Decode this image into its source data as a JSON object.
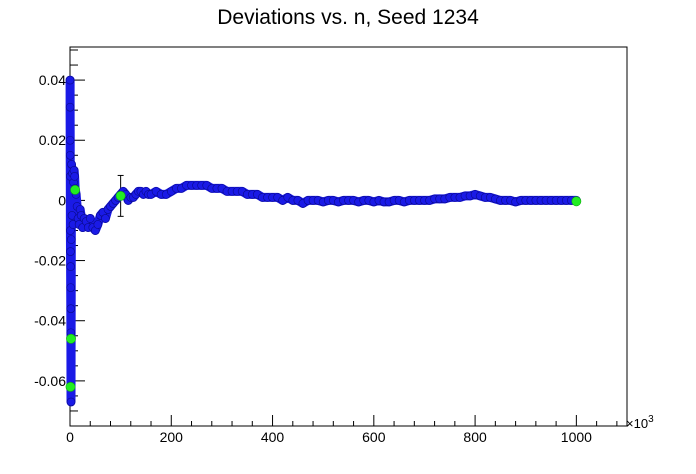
{
  "chart_data": {
    "type": "scatter",
    "title": "Deviations vs. n, Seed 1234",
    "xlabel": "",
    "ylabel": "",
    "x_multiplier_label": "×10",
    "x_multiplier_exponent": "3",
    "xlim": [
      0,
      1100
    ],
    "ylim": [
      -0.075,
      0.051
    ],
    "x_ticks": [
      0,
      200,
      400,
      600,
      800,
      1000
    ],
    "x_tick_labels": [
      "0",
      "200",
      "400",
      "600",
      "800",
      "1000"
    ],
    "y_ticks": [
      -0.06,
      -0.04,
      -0.02,
      0,
      0.02,
      0.04
    ],
    "y_tick_labels": [
      "-0.06",
      "-0.04",
      "-0.02",
      "0",
      "0.02",
      "0.04"
    ],
    "grid": false,
    "series": [
      {
        "color": "#1a1ae6",
        "points": [
          {
            "x": 0.1,
            "y": 0.04
          },
          {
            "x": 0.2,
            "y": 0.031
          },
          {
            "x": 0.3,
            "y": 0.02
          },
          {
            "x": 0.4,
            "y": 0.015
          },
          {
            "x": 0.6,
            "y": 0.008
          },
          {
            "x": 0.8,
            "y": -0.01
          },
          {
            "x": 1.0,
            "y": -0.017
          },
          {
            "x": 1.2,
            "y": -0.022
          },
          {
            "x": 1.4,
            "y": -0.029
          },
          {
            "x": 1.6,
            "y": -0.036
          },
          {
            "x": 1.8,
            "y": -0.044
          },
          {
            "x": 2.0,
            "y": -0.067
          },
          {
            "x": 2.5,
            "y": -0.013
          },
          {
            "x": 3.0,
            "y": 0.012
          },
          {
            "x": 4.0,
            "y": -0.005
          },
          {
            "x": 5.0,
            "y": 0.009
          },
          {
            "x": 6.0,
            "y": -0.008
          },
          {
            "x": 7.0,
            "y": 0.006
          },
          {
            "x": 8.0,
            "y": 0.01
          },
          {
            "x": 9.0,
            "y": 0.008
          },
          {
            "x": 10,
            "y": 0.004
          },
          {
            "x": 12,
            "y": 0.002
          },
          {
            "x": 14,
            "y": -0.002
          },
          {
            "x": 16,
            "y": -0.006
          },
          {
            "x": 18,
            "y": -0.008
          },
          {
            "x": 20,
            "y": -0.003
          },
          {
            "x": 22,
            "y": -0.005
          },
          {
            "x": 25,
            "y": -0.009
          },
          {
            "x": 28,
            "y": -0.006
          },
          {
            "x": 32,
            "y": -0.007
          },
          {
            "x": 36,
            "y": -0.009
          },
          {
            "x": 40,
            "y": -0.006
          },
          {
            "x": 45,
            "y": -0.009
          },
          {
            "x": 50,
            "y": -0.01
          },
          {
            "x": 55,
            "y": -0.008
          },
          {
            "x": 60,
            "y": -0.005
          },
          {
            "x": 65,
            "y": -0.004
          },
          {
            "x": 70,
            "y": -0.006
          },
          {
            "x": 75,
            "y": -0.003
          },
          {
            "x": 80,
            "y": -0.002
          },
          {
            "x": 85,
            "y": -0.001
          },
          {
            "x": 90,
            "y": 0.0
          },
          {
            "x": 95,
            "y": 0.001
          },
          {
            "x": 100,
            "y": 0.002
          },
          {
            "x": 105,
            "y": 0.003
          },
          {
            "x": 110,
            "y": 0.002
          },
          {
            "x": 115,
            "y": 0.0
          },
          {
            "x": 120,
            "y": 0.001
          },
          {
            "x": 125,
            "y": 0.001
          },
          {
            "x": 130,
            "y": 0.002
          },
          {
            "x": 135,
            "y": 0.003
          },
          {
            "x": 140,
            "y": 0.003
          },
          {
            "x": 145,
            "y": 0.002
          },
          {
            "x": 150,
            "y": 0.003
          },
          {
            "x": 155,
            "y": 0.002
          },
          {
            "x": 160,
            "y": 0.002
          },
          {
            "x": 170,
            "y": 0.003
          },
          {
            "x": 180,
            "y": 0.002
          },
          {
            "x": 190,
            "y": 0.002
          },
          {
            "x": 200,
            "y": 0.003
          },
          {
            "x": 210,
            "y": 0.004
          },
          {
            "x": 220,
            "y": 0.004
          },
          {
            "x": 230,
            "y": 0.005
          },
          {
            "x": 240,
            "y": 0.005
          },
          {
            "x": 250,
            "y": 0.005
          },
          {
            "x": 260,
            "y": 0.005
          },
          {
            "x": 270,
            "y": 0.005
          },
          {
            "x": 280,
            "y": 0.004
          },
          {
            "x": 290,
            "y": 0.004
          },
          {
            "x": 300,
            "y": 0.004
          },
          {
            "x": 310,
            "y": 0.003
          },
          {
            "x": 320,
            "y": 0.003
          },
          {
            "x": 330,
            "y": 0.003
          },
          {
            "x": 340,
            "y": 0.003
          },
          {
            "x": 350,
            "y": 0.002
          },
          {
            "x": 360,
            "y": 0.002
          },
          {
            "x": 370,
            "y": 0.002
          },
          {
            "x": 380,
            "y": 0.001
          },
          {
            "x": 390,
            "y": 0.001
          },
          {
            "x": 400,
            "y": 0.001
          },
          {
            "x": 410,
            "y": 0.001
          },
          {
            "x": 420,
            "y": 0.0
          },
          {
            "x": 430,
            "y": 0.001
          },
          {
            "x": 440,
            "y": 0.0
          },
          {
            "x": 450,
            "y": 0.0
          },
          {
            "x": 460,
            "y": -0.001
          },
          {
            "x": 470,
            "y": 0.0
          },
          {
            "x": 480,
            "y": 0.0
          },
          {
            "x": 490,
            "y": 0.0
          },
          {
            "x": 500,
            "y": -0.0005
          },
          {
            "x": 510,
            "y": 0.0
          },
          {
            "x": 520,
            "y": 0.0
          },
          {
            "x": 530,
            "y": -0.0005
          },
          {
            "x": 540,
            "y": 0.0
          },
          {
            "x": 550,
            "y": 0.0
          },
          {
            "x": 560,
            "y": 0.0
          },
          {
            "x": 570,
            "y": -0.0005
          },
          {
            "x": 580,
            "y": 0.0
          },
          {
            "x": 590,
            "y": 0.0
          },
          {
            "x": 600,
            "y": -0.0005
          },
          {
            "x": 610,
            "y": 0.0
          },
          {
            "x": 620,
            "y": -0.0005
          },
          {
            "x": 630,
            "y": -0.0005
          },
          {
            "x": 640,
            "y": 0.0
          },
          {
            "x": 650,
            "y": 0.0
          },
          {
            "x": 660,
            "y": -0.0005
          },
          {
            "x": 670,
            "y": 0.0
          },
          {
            "x": 680,
            "y": 0.0
          },
          {
            "x": 690,
            "y": 0.0
          },
          {
            "x": 700,
            "y": 0.0
          },
          {
            "x": 710,
            "y": 0.0
          },
          {
            "x": 720,
            "y": 0.0005
          },
          {
            "x": 730,
            "y": 0.0005
          },
          {
            "x": 740,
            "y": 0.0005
          },
          {
            "x": 750,
            "y": 0.001
          },
          {
            "x": 760,
            "y": 0.001
          },
          {
            "x": 770,
            "y": 0.001
          },
          {
            "x": 780,
            "y": 0.0015
          },
          {
            "x": 790,
            "y": 0.0015
          },
          {
            "x": 800,
            "y": 0.002
          },
          {
            "x": 810,
            "y": 0.0015
          },
          {
            "x": 820,
            "y": 0.001
          },
          {
            "x": 830,
            "y": 0.001
          },
          {
            "x": 840,
            "y": 0.0005
          },
          {
            "x": 850,
            "y": 0.0
          },
          {
            "x": 860,
            "y": 0.0
          },
          {
            "x": 870,
            "y": 0.0
          },
          {
            "x": 880,
            "y": -0.0005
          },
          {
            "x": 890,
            "y": 0.0
          },
          {
            "x": 900,
            "y": 0.0
          },
          {
            "x": 910,
            "y": 0.0
          },
          {
            "x": 920,
            "y": 0.0
          },
          {
            "x": 930,
            "y": 0.0
          },
          {
            "x": 940,
            "y": 0.0
          },
          {
            "x": 950,
            "y": 0.0
          },
          {
            "x": 960,
            "y": 0.0
          },
          {
            "x": 970,
            "y": 0.0
          },
          {
            "x": 980,
            "y": 0.0
          },
          {
            "x": 990,
            "y": 0.0
          },
          {
            "x": 1000,
            "y": 0.0
          }
        ]
      },
      {
        "color": "#22ee22",
        "points": [
          {
            "x": 1,
            "y": -0.062,
            "err": 0.0
          },
          {
            "x": 2,
            "y": -0.046,
            "err": 0.0
          },
          {
            "x": 10,
            "y": 0.0035,
            "err": 0.0
          },
          {
            "x": 100,
            "y": 0.0015,
            "err": 0.0068
          },
          {
            "x": 1000,
            "y": -0.0003,
            "err": 0.0
          }
        ]
      }
    ]
  }
}
